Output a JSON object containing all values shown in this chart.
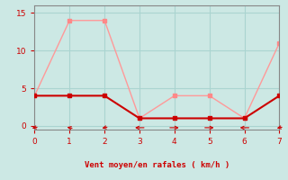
{
  "xlabel": "Vent moyen/en rafales ( km/h )",
  "background_color": "#cce8e4",
  "grid_color": "#aad4d0",
  "line1_x": [
    0,
    1,
    2,
    3,
    4,
    5,
    6,
    7
  ],
  "line1_y": [
    4,
    14,
    14,
    1,
    4,
    4,
    1,
    11
  ],
  "line2_x": [
    0,
    1,
    2,
    3,
    4,
    5,
    6,
    7
  ],
  "line2_y": [
    4,
    4,
    4,
    1,
    1,
    1,
    1,
    4
  ],
  "line1_color": "#ff9999",
  "line2_color": "#cc0000",
  "marker1_color": "#ff8888",
  "marker2_color": "#cc0000",
  "spine_color": "#888888",
  "tick_color": "#cc0000",
  "xlabel_color": "#cc0000",
  "xlim": [
    0,
    7
  ],
  "ylim": [
    -0.5,
    16
  ],
  "yticks": [
    0,
    5,
    10,
    15
  ],
  "xticks": [
    0,
    1,
    2,
    3,
    4,
    5,
    6,
    7
  ],
  "label_fontsize": 6.5,
  "arrow_angles": [
    225,
    315,
    225,
    270,
    90,
    90,
    270,
    225
  ]
}
